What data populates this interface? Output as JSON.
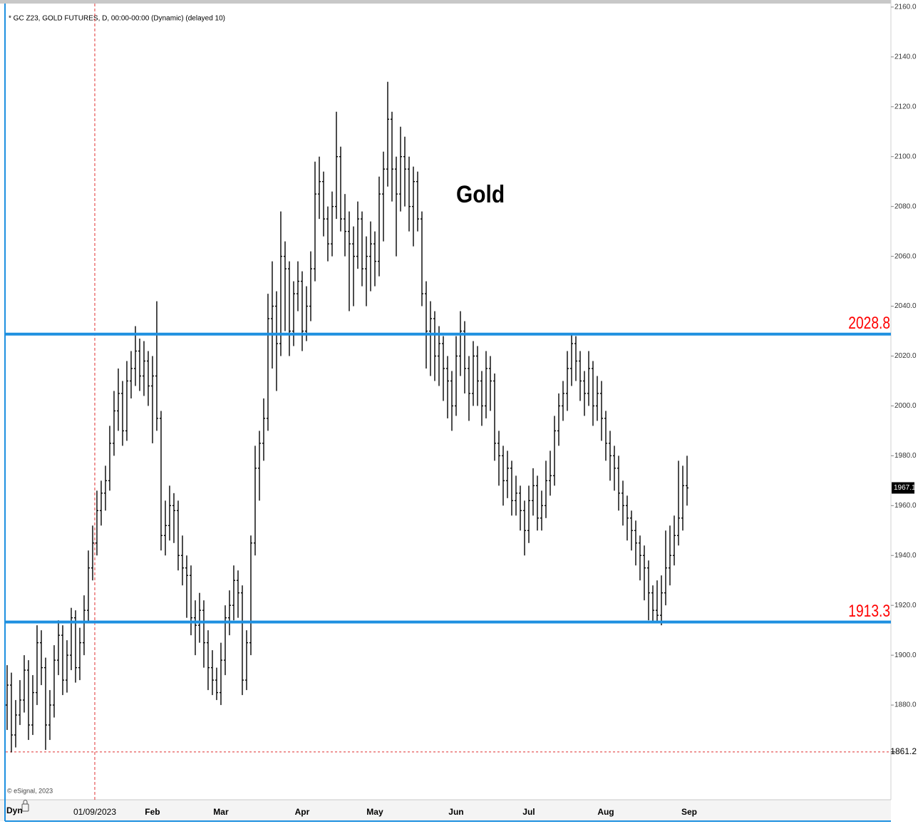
{
  "chart_data": {
    "type": "ohlc",
    "title": "* GC Z23, GOLD FUTURES, D, 00:00-00:00 (Dynamic) (delayed 10)",
    "annotation": "Gold",
    "credit": "© eSignal, 2023",
    "mode_label": "Dyn",
    "color": "#000000",
    "level_color": "#1e90e0",
    "level_label_color": "#ff0000",
    "xlim": [
      -0.33,
      206.67
    ],
    "xticks": [
      {
        "value": 20.5,
        "label": "01/09/2023"
      },
      {
        "value": 34,
        "label": "Feb"
      },
      {
        "value": 50,
        "label": "Mar"
      },
      {
        "value": 69,
        "label": "Apr"
      },
      {
        "value": 86,
        "label": "May"
      },
      {
        "value": 105,
        "label": "Jun"
      },
      {
        "value": 122,
        "label": "Jul"
      },
      {
        "value": 140,
        "label": "Aug"
      },
      {
        "value": 159.5,
        "label": "Sep"
      }
    ],
    "crosshair_tick": 0,
    "ylim": [
      1842,
      2161.4
    ],
    "yticks": [
      {
        "value": 1880,
        "label": "1880.0"
      },
      {
        "value": 1900,
        "label": "1900.0"
      },
      {
        "value": 1920,
        "label": "1920.0"
      },
      {
        "value": 1940,
        "label": "1940.0"
      },
      {
        "value": 1960,
        "label": "1960.0"
      },
      {
        "value": 1980,
        "label": "1980.0"
      },
      {
        "value": 2000,
        "label": "2000.0"
      },
      {
        "value": 2020,
        "label": "2020.0"
      },
      {
        "value": 2040,
        "label": "2040.0"
      },
      {
        "value": 2060,
        "label": "2060.0"
      },
      {
        "value": 2080,
        "label": "2080.0"
      },
      {
        "value": 2100,
        "label": "2100.0"
      },
      {
        "value": 2120,
        "label": "2120.0"
      },
      {
        "value": 2140,
        "label": "2140.0"
      },
      {
        "value": 2160,
        "label": "2160.0"
      }
    ],
    "levels": [
      {
        "value": 2028.8,
        "label": "2028.8"
      },
      {
        "value": 1913.3,
        "label": "1913.3"
      }
    ],
    "low_line": {
      "value": 1861.2,
      "label": "1861.2"
    },
    "last_price": {
      "value": 1967.1,
      "label": "1967.1"
    },
    "bars": [
      [
        1880,
        1896,
        1870,
        1888
      ],
      [
        1888,
        1893,
        1861,
        1868
      ],
      [
        1868,
        1882,
        1863,
        1876
      ],
      [
        1876,
        1890,
        1872,
        1882
      ],
      [
        1882,
        1900,
        1877,
        1894
      ],
      [
        1894,
        1898,
        1866,
        1872
      ],
      [
        1872,
        1892,
        1868,
        1885
      ],
      [
        1885,
        1912,
        1880,
        1905
      ],
      [
        1905,
        1910,
        1888,
        1895
      ],
      [
        1895,
        1899,
        1862,
        1872
      ],
      [
        1872,
        1886,
        1866,
        1880
      ],
      [
        1880,
        1904,
        1875,
        1898
      ],
      [
        1898,
        1914,
        1892,
        1908
      ],
      [
        1908,
        1912,
        1884,
        1890
      ],
      [
        1890,
        1906,
        1885,
        1900
      ],
      [
        1900,
        1919,
        1894,
        1915
      ],
      [
        1915,
        1918,
        1889,
        1895
      ],
      [
        1895,
        1911,
        1890,
        1905
      ],
      [
        1905,
        1924,
        1900,
        1918
      ],
      [
        1918,
        1942,
        1913,
        1935
      ],
      [
        1935,
        1952,
        1930,
        1945
      ],
      [
        1945,
        1966,
        1940,
        1958
      ],
      [
        1958,
        1970,
        1952,
        1965
      ],
      [
        1965,
        1976,
        1958,
        1970
      ],
      [
        1970,
        1992,
        1966,
        1985
      ],
      [
        1985,
        2006,
        1980,
        1998
      ],
      [
        1998,
        2015,
        1990,
        2005
      ],
      [
        2005,
        2010,
        1984,
        1990
      ],
      [
        1990,
        2018,
        1986,
        2010
      ],
      [
        2010,
        2022,
        2003,
        2015
      ],
      [
        2015,
        2032,
        2008,
        2022
      ],
      [
        2022,
        2027,
        2006,
        2012
      ],
      [
        2012,
        2026,
        2004,
        2018
      ],
      [
        2018,
        2022,
        2000,
        2008
      ],
      [
        2008,
        2020,
        1985,
        2012
      ],
      [
        2012,
        2042,
        1990,
        1995
      ],
      [
        1995,
        1998,
        1942,
        1948
      ],
      [
        1948,
        1962,
        1940,
        1952
      ],
      [
        1952,
        1968,
        1946,
        1960
      ],
      [
        1960,
        1965,
        1945,
        1958
      ],
      [
        1958,
        1962,
        1934,
        1940
      ],
      [
        1940,
        1948,
        1928,
        1935
      ],
      [
        1935,
        1940,
        1915,
        1932
      ],
      [
        1932,
        1936,
        1908,
        1915
      ],
      [
        1915,
        1922,
        1900,
        1912
      ],
      [
        1912,
        1925,
        1905,
        1918
      ],
      [
        1918,
        1922,
        1895,
        1905
      ],
      [
        1905,
        1910,
        1886,
        1895
      ],
      [
        1895,
        1902,
        1884,
        1890
      ],
      [
        1890,
        1895,
        1882,
        1885
      ],
      [
        1885,
        1905,
        1880,
        1898
      ],
      [
        1898,
        1920,
        1892,
        1915
      ],
      [
        1915,
        1926,
        1908,
        1920
      ],
      [
        1920,
        1936,
        1914,
        1930
      ],
      [
        1930,
        1934,
        1915,
        1925
      ],
      [
        1925,
        1928,
        1884,
        1890
      ],
      [
        1890,
        1910,
        1886,
        1905
      ],
      [
        1905,
        1948,
        1900,
        1945
      ],
      [
        1945,
        1984,
        1940,
        1975
      ],
      [
        1975,
        1990,
        1962,
        1985
      ],
      [
        1985,
        2003,
        1978,
        1995
      ],
      [
        1995,
        2045,
        1990,
        2035
      ],
      [
        2035,
        2058,
        2015,
        2040
      ],
      [
        2040,
        2046,
        2006,
        2025
      ],
      [
        2025,
        2078,
        2020,
        2060
      ],
      [
        2060,
        2066,
        2030,
        2055
      ],
      [
        2055,
        2058,
        2020,
        2030
      ],
      [
        2030,
        2050,
        2024,
        2045
      ],
      [
        2045,
        2058,
        2038,
        2050
      ],
      [
        2050,
        2054,
        2022,
        2030
      ],
      [
        2030,
        2048,
        2026,
        2040
      ],
      [
        2040,
        2062,
        2034,
        2055
      ],
      [
        2055,
        2098,
        2050,
        2085
      ],
      [
        2085,
        2100,
        2075,
        2090
      ],
      [
        2090,
        2094,
        2068,
        2075
      ],
      [
        2075,
        2080,
        2058,
        2065
      ],
      [
        2065,
        2086,
        2060,
        2080
      ],
      [
        2080,
        2118,
        2075,
        2100
      ],
      [
        2100,
        2104,
        2070,
        2075
      ],
      [
        2075,
        2085,
        2060,
        2070
      ],
      [
        2070,
        2078,
        2038,
        2065
      ],
      [
        2065,
        2072,
        2040,
        2060
      ],
      [
        2060,
        2082,
        2055,
        2075
      ],
      [
        2075,
        2078,
        2048,
        2055
      ],
      [
        2055,
        2068,
        2040,
        2060
      ],
      [
        2060,
        2074,
        2046,
        2065
      ],
      [
        2065,
        2070,
        2048,
        2058
      ],
      [
        2058,
        2092,
        2052,
        2085
      ],
      [
        2085,
        2102,
        2066,
        2095
      ],
      [
        2095,
        2130,
        2088,
        2115
      ],
      [
        2115,
        2118,
        2082,
        2095
      ],
      [
        2095,
        2100,
        2060,
        2085
      ],
      [
        2085,
        2112,
        2078,
        2100
      ],
      [
        2100,
        2108,
        2080,
        2095
      ],
      [
        2095,
        2100,
        2070,
        2080
      ],
      [
        2080,
        2096,
        2064,
        2090
      ],
      [
        2090,
        2094,
        2070,
        2075
      ],
      [
        2075,
        2078,
        2040,
        2045
      ],
      [
        2045,
        2050,
        2015,
        2030
      ],
      [
        2030,
        2042,
        2012,
        2035
      ],
      [
        2035,
        2038,
        2010,
        2020
      ],
      [
        2020,
        2032,
        2008,
        2025
      ],
      [
        2025,
        2028,
        2002,
        2015
      ],
      [
        2015,
        2020,
        1995,
        2010
      ],
      [
        2010,
        2014,
        1990,
        2000
      ],
      [
        2000,
        2028,
        1996,
        2020
      ],
      [
        2020,
        2038,
        2012,
        2030
      ],
      [
        2030,
        2034,
        2005,
        2015
      ],
      [
        2015,
        2020,
        1994,
        2005
      ],
      [
        2005,
        2026,
        2000,
        2020
      ],
      [
        2020,
        2024,
        2000,
        2010
      ],
      [
        2010,
        2014,
        1992,
        2000
      ],
      [
        2000,
        2022,
        1995,
        2015
      ],
      [
        2015,
        2020,
        1998,
        2010
      ],
      [
        2010,
        2013,
        1978,
        1985
      ],
      [
        1985,
        1990,
        1968,
        1980
      ],
      [
        1980,
        1984,
        1960,
        1970
      ],
      [
        1970,
        1982,
        1963,
        1975
      ],
      [
        1975,
        1978,
        1956,
        1962
      ],
      [
        1962,
        1972,
        1956,
        1965
      ],
      [
        1965,
        1968,
        1950,
        1958
      ],
      [
        1958,
        1962,
        1940,
        1950
      ],
      [
        1950,
        1968,
        1945,
        1962
      ],
      [
        1962,
        1975,
        1956,
        1968
      ],
      [
        1968,
        1972,
        1950,
        1955
      ],
      [
        1955,
        1966,
        1950,
        1960
      ],
      [
        1960,
        1978,
        1955,
        1970
      ],
      [
        1970,
        1982,
        1964,
        1972
      ],
      [
        1972,
        1996,
        1968,
        1990
      ],
      [
        1990,
        2005,
        1984,
        2000
      ],
      [
        2000,
        2010,
        1994,
        2005
      ],
      [
        2005,
        2022,
        1998,
        2015
      ],
      [
        2015,
        2029,
        2008,
        2025
      ],
      [
        2025,
        2028,
        2010,
        2018
      ],
      [
        2018,
        2022,
        2002,
        2010
      ],
      [
        2010,
        2014,
        1996,
        2005
      ],
      [
        2005,
        2022,
        2000,
        2015
      ],
      [
        2015,
        2018,
        1992,
        2000
      ],
      [
        2000,
        2012,
        1994,
        2005
      ],
      [
        2005,
        2010,
        1986,
        1995
      ],
      [
        1995,
        1998,
        1978,
        1985
      ],
      [
        1985,
        1990,
        1970,
        1980
      ],
      [
        1980,
        1984,
        1966,
        1975
      ],
      [
        1975,
        1980,
        1958,
        1965
      ],
      [
        1965,
        1970,
        1952,
        1960
      ],
      [
        1960,
        1964,
        1946,
        1955
      ],
      [
        1955,
        1958,
        1942,
        1950
      ],
      [
        1950,
        1954,
        1936,
        1945
      ],
      [
        1945,
        1948,
        1930,
        1940
      ],
      [
        1940,
        1944,
        1922,
        1935
      ],
      [
        1935,
        1938,
        1914,
        1925
      ],
      [
        1925,
        1928,
        1913,
        1918
      ],
      [
        1918,
        1930,
        1913,
        1916
      ],
      [
        1916,
        1932,
        1912,
        1925
      ],
      [
        1925,
        1950,
        1920,
        1935
      ],
      [
        1935,
        1952,
        1928,
        1940
      ],
      [
        1940,
        1956,
        1936,
        1948
      ],
      [
        1948,
        1978,
        1944,
        1955
      ],
      [
        1955,
        1976,
        1950,
        1968
      ],
      [
        1968,
        1980,
        1960,
        1967.1
      ]
    ]
  }
}
